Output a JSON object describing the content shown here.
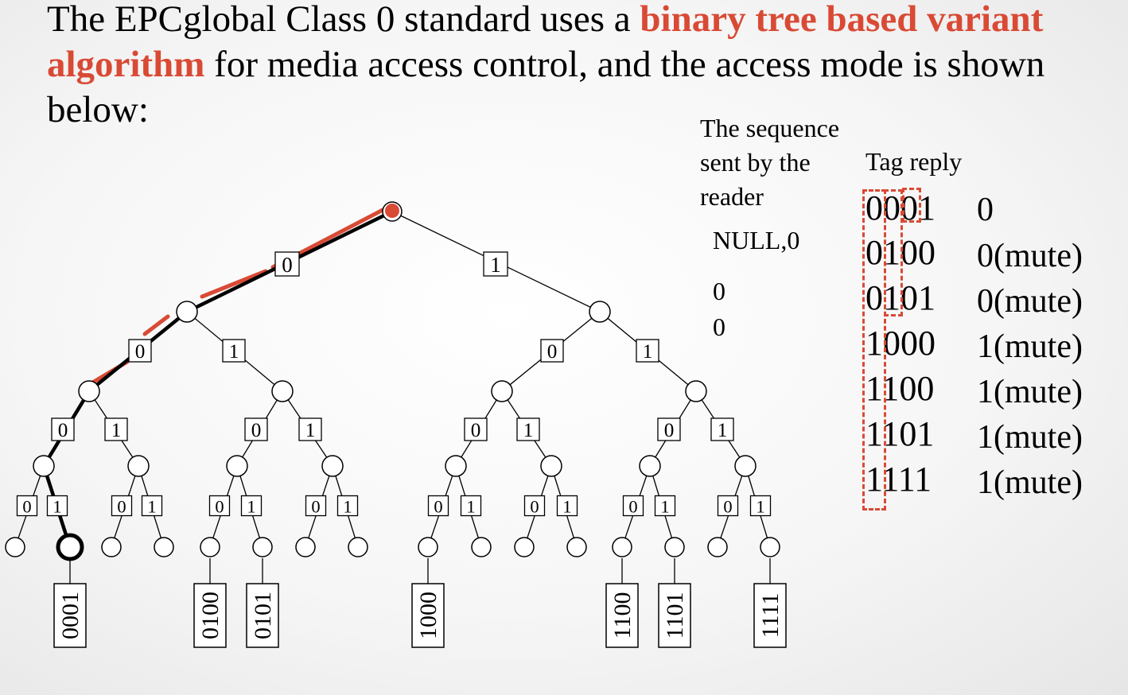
{
  "heading": {
    "text_before": "The EPCglobal Class 0 standard uses a ",
    "highlight_1": "binary tree based variant",
    "text_break": " ",
    "highlight_2": "algorithm",
    "text_after": " for media access control, and the access mode is shown below:"
  },
  "colors": {
    "accent": "#d94a35",
    "line": "#000000",
    "node_fill": "#ffffff"
  },
  "table": {
    "sequence_header": [
      "The sequence",
      "sent by the",
      "reader"
    ],
    "reply_header": "Tag reply",
    "sequence": [
      "NULL,0",
      "0",
      "0"
    ],
    "codes": [
      "0001",
      "0100",
      "0101",
      "1000",
      "1100",
      "1101",
      "1111"
    ],
    "replies": [
      "0",
      "0(mute)",
      "0(mute)",
      "1(mute)",
      "1(mute)",
      "1(mute)",
      "1(mute)"
    ]
  },
  "tree": {
    "branch_label_zero": "0",
    "branch_label_one": "1",
    "tag_ids": [
      "0001",
      "0100",
      "0101",
      "1000",
      "1100",
      "1101",
      "1111"
    ]
  }
}
